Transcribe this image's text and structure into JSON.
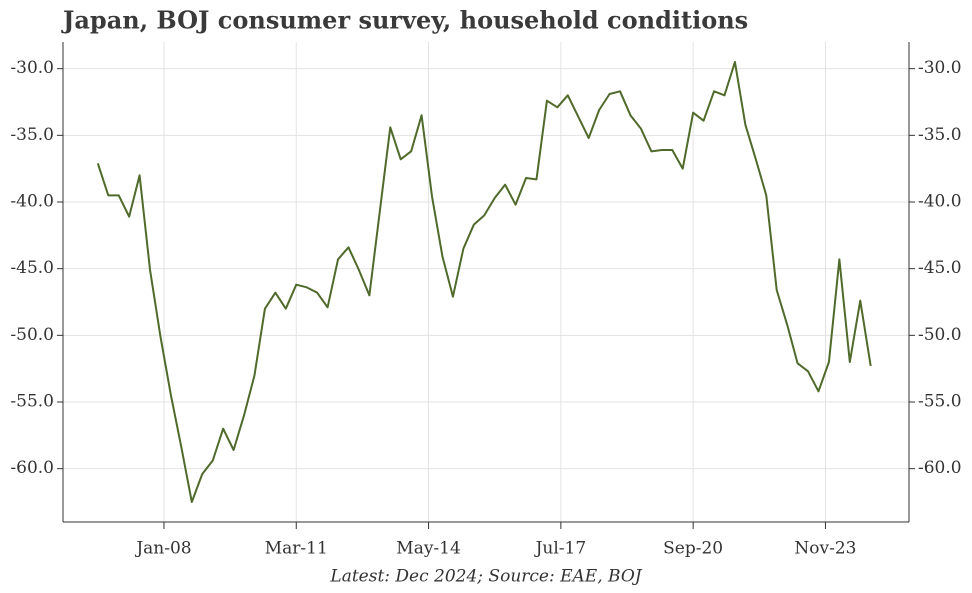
{
  "chart_data": {
    "type": "line",
    "title": "Japan, BOJ consumer survey, household conditions",
    "footer": "Latest: Dec 2024; Source: EAE, BOJ",
    "x": [
      "2006-06",
      "2006-09",
      "2006-12",
      "2007-03",
      "2007-06",
      "2007-09",
      "2007-12",
      "2008-03",
      "2008-06",
      "2008-09",
      "2008-12",
      "2009-03",
      "2009-06",
      "2009-09",
      "2009-12",
      "2010-03",
      "2010-06",
      "2010-09",
      "2010-12",
      "2011-03",
      "2011-06",
      "2011-09",
      "2011-12",
      "2012-03",
      "2012-06",
      "2012-09",
      "2012-12",
      "2013-03",
      "2013-06",
      "2013-09",
      "2013-12",
      "2014-03",
      "2014-06",
      "2014-09",
      "2014-12",
      "2015-03",
      "2015-06",
      "2015-09",
      "2015-12",
      "2016-03",
      "2016-06",
      "2016-09",
      "2016-12",
      "2017-03",
      "2017-06",
      "2017-09",
      "2017-12",
      "2018-03",
      "2018-06",
      "2018-09",
      "2018-12",
      "2019-03",
      "2019-06",
      "2019-09",
      "2019-12",
      "2020-03",
      "2020-06",
      "2020-09",
      "2020-12",
      "2021-03",
      "2021-06",
      "2021-09",
      "2021-12",
      "2022-03",
      "2022-06",
      "2022-09",
      "2022-12",
      "2023-03",
      "2023-06",
      "2023-09",
      "2023-12",
      "2024-03",
      "2024-06",
      "2024-09",
      "2024-12"
    ],
    "series": [
      {
        "color": "#4f6a2a",
        "values": [
          -37.1,
          -39.5,
          -39.5,
          -41.1,
          -38.0,
          -45.1,
          -50.1,
          -54.5,
          -58.4,
          -62.5,
          -60.4,
          -59.4,
          -57.0,
          -58.6,
          -56.0,
          -53.0,
          -48.0,
          -46.8,
          -48.0,
          -46.2,
          -46.4,
          -46.8,
          -47.9,
          -44.3,
          -43.4,
          -45.1,
          -47.0,
          -40.7,
          -34.4,
          -36.8,
          -36.2,
          -33.5,
          -39.6,
          -44.1,
          -47.1,
          -43.5,
          -41.7,
          -41.0,
          -39.7,
          -38.7,
          -40.2,
          -38.2,
          -38.3,
          -32.4,
          -32.9,
          -32.0,
          -33.6,
          -35.2,
          -33.1,
          -31.9,
          -31.7,
          -33.5,
          -34.5,
          -36.2,
          -36.1,
          -36.1,
          -37.5,
          -33.3,
          -33.9,
          -31.7,
          -32.0,
          -29.5,
          -34.2,
          -36.8,
          -39.5,
          -46.6,
          -49.2,
          -52.1,
          -52.7,
          -54.2,
          -52.0,
          -44.3,
          -52.0,
          -47.4,
          -52.3
        ]
      }
    ],
    "xlim": [
      "2005-08",
      "2025-11"
    ],
    "xticks": [
      {
        "value": "2008-01",
        "label": "Jan-08"
      },
      {
        "value": "2011-03",
        "label": "Mar-11"
      },
      {
        "value": "2014-05",
        "label": "May-14"
      },
      {
        "value": "2017-07",
        "label": "Jul-17"
      },
      {
        "value": "2020-09",
        "label": "Sep-20"
      },
      {
        "value": "2023-11",
        "label": "Nov-23"
      }
    ],
    "ylim": [
      -64,
      -28
    ],
    "yticks": [
      {
        "value": -30,
        "label": "-30.0"
      },
      {
        "value": -35,
        "label": "-35.0"
      },
      {
        "value": -40,
        "label": "-40.0"
      },
      {
        "value": -45,
        "label": "-45.0"
      },
      {
        "value": -50,
        "label": "-50.0"
      },
      {
        "value": -55,
        "label": "-55.0"
      },
      {
        "value": -60,
        "label": "-60.0"
      }
    ],
    "grid": true
  }
}
